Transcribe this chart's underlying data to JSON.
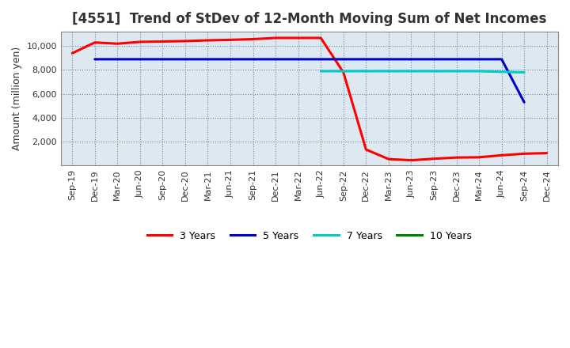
{
  "title": "[4551]  Trend of StDev of 12-Month Moving Sum of Net Incomes",
  "ylabel": "Amount (million yen)",
  "background_color": "#ffffff",
  "plot_bg_color": "#dde8f0",
  "grid_color": "#6688aa",
  "x_labels": [
    "Sep-19",
    "Dec-19",
    "Mar-20",
    "Jun-20",
    "Sep-20",
    "Dec-20",
    "Mar-21",
    "Jun-21",
    "Sep-21",
    "Dec-21",
    "Mar-22",
    "Jun-22",
    "Sep-22",
    "Dec-22",
    "Mar-23",
    "Jun-23",
    "Sep-23",
    "Dec-23",
    "Mar-24",
    "Jun-24",
    "Sep-24",
    "Dec-24"
  ],
  "series": {
    "3 Years": {
      "color": "#ff0000",
      "values": [
        9400,
        10300,
        10200,
        10350,
        10380,
        10420,
        10480,
        10520,
        10580,
        10680,
        10680,
        10680,
        7800,
        1350,
        550,
        450,
        580,
        680,
        700,
        870,
        1000,
        1050
      ]
    },
    "5 Years": {
      "color": "#0000cc",
      "values": [
        null,
        8900,
        8900,
        8900,
        8900,
        8900,
        8900,
        8900,
        8900,
        8900,
        8900,
        8900,
        8900,
        8900,
        8900,
        8900,
        8900,
        8900,
        8900,
        8900,
        5300,
        null
      ]
    },
    "7 Years": {
      "color": "#00cccc",
      "values": [
        null,
        null,
        null,
        null,
        null,
        null,
        null,
        null,
        null,
        null,
        null,
        7900,
        7900,
        7900,
        7900,
        7900,
        7900,
        7900,
        7900,
        7850,
        7800,
        null
      ]
    },
    "10 Years": {
      "color": "#008000",
      "values": [
        null,
        null,
        null,
        null,
        null,
        null,
        null,
        null,
        null,
        null,
        null,
        null,
        null,
        null,
        null,
        null,
        null,
        null,
        null,
        null,
        null,
        null
      ]
    }
  },
  "ylim": [
    0,
    11200
  ],
  "yticks": [
    2000,
    4000,
    6000,
    8000,
    10000
  ],
  "title_fontsize": 12,
  "tick_fontsize": 8,
  "legend_fontsize": 9
}
